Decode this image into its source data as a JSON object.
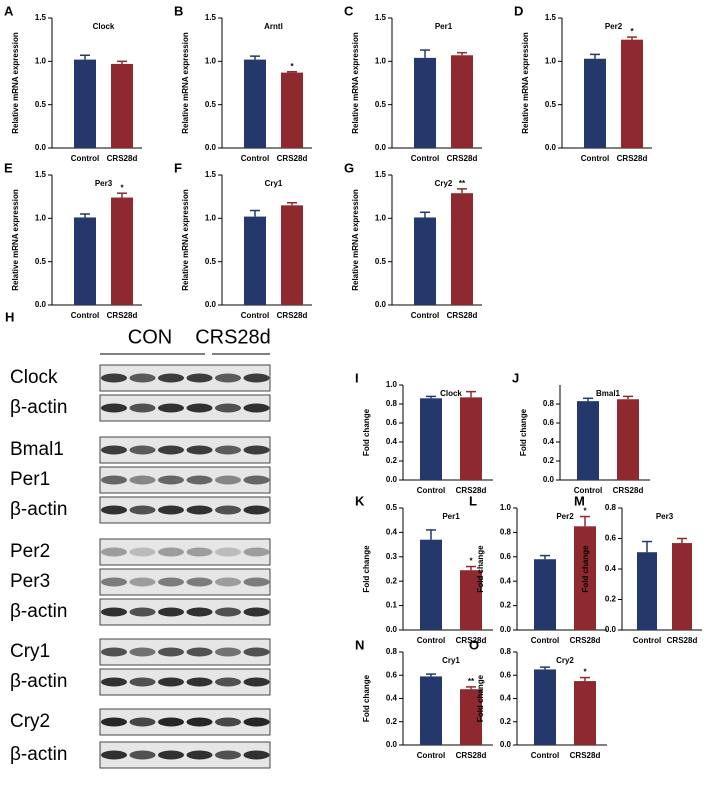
{
  "chart_data": [
    {
      "type": "bar",
      "panel": "A",
      "title": "Clock",
      "ylabel": "Relative mRNA expression",
      "categories": [
        "Control",
        "CRS28d"
      ],
      "values": [
        1.02,
        0.97
      ],
      "errors": [
        0.05,
        0.03
      ],
      "colors": [
        "#24386b",
        "#8e2a2f"
      ],
      "annotations": [
        null,
        null
      ],
      "ylim": [
        0,
        1.5
      ],
      "yticks": [
        {
          "value": 0,
          "label": "0.0"
        },
        0.5,
        {
          "value": 1,
          "label": "1.0"
        },
        1.5
      ]
    },
    {
      "type": "bar",
      "panel": "B",
      "title": "Arntl",
      "ylabel": "Relative mRNA expression",
      "categories": [
        "Control",
        "CRS28d"
      ],
      "values": [
        1.02,
        0.87
      ],
      "errors": [
        0.04,
        0.01
      ],
      "colors": [
        "#24386b",
        "#8e2a2f"
      ],
      "annotations": [
        null,
        "*"
      ],
      "ylim": [
        0,
        1.5
      ],
      "yticks": [
        {
          "value": 0,
          "label": "0.0"
        },
        0.5,
        {
          "value": 1,
          "label": "1.0"
        },
        1.5
      ]
    },
    {
      "type": "bar",
      "panel": "C",
      "title": "Per1",
      "ylabel": "Relative mRNA expression",
      "categories": [
        "Control",
        "CRS28d"
      ],
      "values": [
        1.04,
        1.07
      ],
      "errors": [
        0.09,
        0.03
      ],
      "colors": [
        "#24386b",
        "#8e2a2f"
      ],
      "annotations": [
        null,
        null
      ],
      "ylim": [
        0,
        1.5
      ],
      "yticks": [
        {
          "value": 0,
          "label": "0.0"
        },
        0.5,
        {
          "value": 1,
          "label": "1.0"
        },
        1.5
      ]
    },
    {
      "type": "bar",
      "panel": "D",
      "title": "Per2",
      "ylabel": "Relative mRNA expression",
      "categories": [
        "Control",
        "CRS28d"
      ],
      "values": [
        1.03,
        1.25
      ],
      "errors": [
        0.05,
        0.03
      ],
      "colors": [
        "#24386b",
        "#8e2a2f"
      ],
      "annotations": [
        null,
        "*"
      ],
      "ylim": [
        0,
        1.5
      ],
      "yticks": [
        {
          "value": 0,
          "label": "0.0"
        },
        0.5,
        {
          "value": 1,
          "label": "1.0"
        },
        1.5
      ]
    },
    {
      "type": "bar",
      "panel": "E",
      "title": "Per3",
      "ylabel": "Relative mRNA expression",
      "categories": [
        "Control",
        "CRS28d"
      ],
      "values": [
        1.01,
        1.24
      ],
      "errors": [
        0.04,
        0.05
      ],
      "colors": [
        "#24386b",
        "#8e2a2f"
      ],
      "annotations": [
        null,
        "*"
      ],
      "ylim": [
        0,
        1.5
      ],
      "yticks": [
        {
          "value": 0,
          "label": "0.0"
        },
        0.5,
        {
          "value": 1,
          "label": "1.0"
        },
        1.5
      ]
    },
    {
      "type": "bar",
      "panel": "F",
      "title": "Cry1",
      "ylabel": "Relative mRNA expression",
      "categories": [
        "Control",
        "CRS28d"
      ],
      "values": [
        1.02,
        1.15
      ],
      "errors": [
        0.07,
        0.03
      ],
      "colors": [
        "#24386b",
        "#8e2a2f"
      ],
      "annotations": [
        null,
        null
      ],
      "ylim": [
        0,
        1.5
      ],
      "yticks": [
        {
          "value": 0,
          "label": "0.0"
        },
        0.5,
        {
          "value": 1,
          "label": "1.0"
        },
        1.5
      ]
    },
    {
      "type": "bar",
      "panel": "G",
      "title": "Cry2",
      "ylabel": "Relative mRNA expression",
      "categories": [
        "Control",
        "CRS28d"
      ],
      "values": [
        1.01,
        1.29
      ],
      "errors": [
        0.06,
        0.05
      ],
      "colors": [
        "#24386b",
        "#8e2a2f"
      ],
      "annotations": [
        null,
        "**"
      ],
      "ylim": [
        0,
        1.5
      ],
      "yticks": [
        {
          "value": 0,
          "label": "0.0"
        },
        0.5,
        {
          "value": 1,
          "label": "1.0"
        },
        1.5
      ]
    },
    {
      "type": "bar",
      "panel": "I",
      "title": "Clock",
      "ylabel": "Fold change",
      "categories": [
        "Control",
        "CRS28d"
      ],
      "values": [
        0.86,
        0.87
      ],
      "errors": [
        0.02,
        0.06
      ],
      "colors": [
        "#24386b",
        "#8e2a2f"
      ],
      "annotations": [
        null,
        null
      ],
      "ylim": [
        0,
        1
      ],
      "yticks": [
        {
          "value": 0,
          "label": "0.0"
        },
        0.2,
        0.4,
        0.6,
        0.8,
        {
          "value": 1,
          "label": "1.0"
        }
      ]
    },
    {
      "type": "bar",
      "panel": "J",
      "title": "Bmal1",
      "ylabel": "Fold change",
      "categories": [
        "Control",
        "CRS28d"
      ],
      "values": [
        0.83,
        0.85
      ],
      "errors": [
        0.03,
        0.03
      ],
      "colors": [
        "#24386b",
        "#8e2a2f"
      ],
      "annotations": [
        null,
        null
      ],
      "ylim": [
        0,
        1
      ],
      "yticks": [
        {
          "value": 0,
          "label": "0.0"
        },
        0.2,
        0.4,
        0.6,
        0.8
      ]
    },
    {
      "type": "bar",
      "panel": "K",
      "title": "Per1",
      "ylabel": "Fold change",
      "categories": [
        "Control",
        "CRS28d"
      ],
      "values": [
        0.37,
        0.245
      ],
      "errors": [
        0.04,
        0.015
      ],
      "colors": [
        "#24386b",
        "#8e2a2f"
      ],
      "annotations": [
        null,
        "*"
      ],
      "ylim": [
        0,
        0.5
      ],
      "yticks": [
        {
          "value": 0,
          "label": "0.0"
        },
        0.1,
        0.2,
        0.3,
        0.4,
        0.5
      ]
    },
    {
      "type": "bar",
      "panel": "L",
      "title": "Per2",
      "ylabel": "Fold change",
      "categories": [
        "Control",
        "CRS28d"
      ],
      "values": [
        0.58,
        0.85
      ],
      "errors": [
        0.03,
        0.08
      ],
      "colors": [
        "#24386b",
        "#8e2a2f"
      ],
      "annotations": [
        null,
        "*"
      ],
      "ylim": [
        0,
        1
      ],
      "yticks": [
        {
          "value": 0,
          "label": "0.0"
        },
        0.2,
        0.4,
        0.6,
        0.8,
        {
          "value": 1,
          "label": "1.0"
        }
      ]
    },
    {
      "type": "bar",
      "panel": "M",
      "title": "Per3",
      "ylabel": "Fold change",
      "categories": [
        "Control",
        "CRS28d"
      ],
      "values": [
        0.51,
        0.57
      ],
      "errors": [
        0.07,
        0.03
      ],
      "colors": [
        "#24386b",
        "#8e2a2f"
      ],
      "annotations": [
        null,
        null
      ],
      "ylim": [
        0,
        0.8
      ],
      "yticks": [
        {
          "value": 0,
          "label": "0.0"
        },
        0.2,
        0.4,
        0.6,
        0.8
      ]
    },
    {
      "type": "bar",
      "panel": "N",
      "title": "Cry1",
      "ylabel": "Fold change",
      "categories": [
        "Control",
        "CRS28d"
      ],
      "values": [
        0.59,
        0.48
      ],
      "errors": [
        0.02,
        0.02
      ],
      "colors": [
        "#24386b",
        "#8e2a2f"
      ],
      "annotations": [
        null,
        "**"
      ],
      "ylim": [
        0,
        0.8
      ],
      "yticks": [
        {
          "value": 0,
          "label": "0.0"
        },
        0.2,
        0.4,
        0.6,
        0.8
      ]
    },
    {
      "type": "bar",
      "panel": "O",
      "title": "Cry2",
      "ylabel": "Fold change",
      "categories": [
        "Control",
        "CRS28d"
      ],
      "values": [
        0.65,
        0.55
      ],
      "errors": [
        0.02,
        0.03
      ],
      "colors": [
        "#24386b",
        "#8e2a2f"
      ],
      "annotations": [
        null,
        "*"
      ],
      "ylim": [
        0,
        0.8
      ],
      "yticks": [
        {
          "value": 0,
          "label": "0.0"
        },
        0.2,
        0.4,
        0.6,
        0.8
      ]
    }
  ],
  "blot": {
    "panel": "H",
    "groups": [
      "CON",
      "CRS28d"
    ],
    "rows": [
      "Clock",
      "β-actin",
      "Bmal1",
      "Per1",
      "β-actin",
      "Per2",
      "Per3",
      "β-actin",
      "Cry1",
      "β-actin",
      "Cry2",
      "β-actin"
    ]
  }
}
